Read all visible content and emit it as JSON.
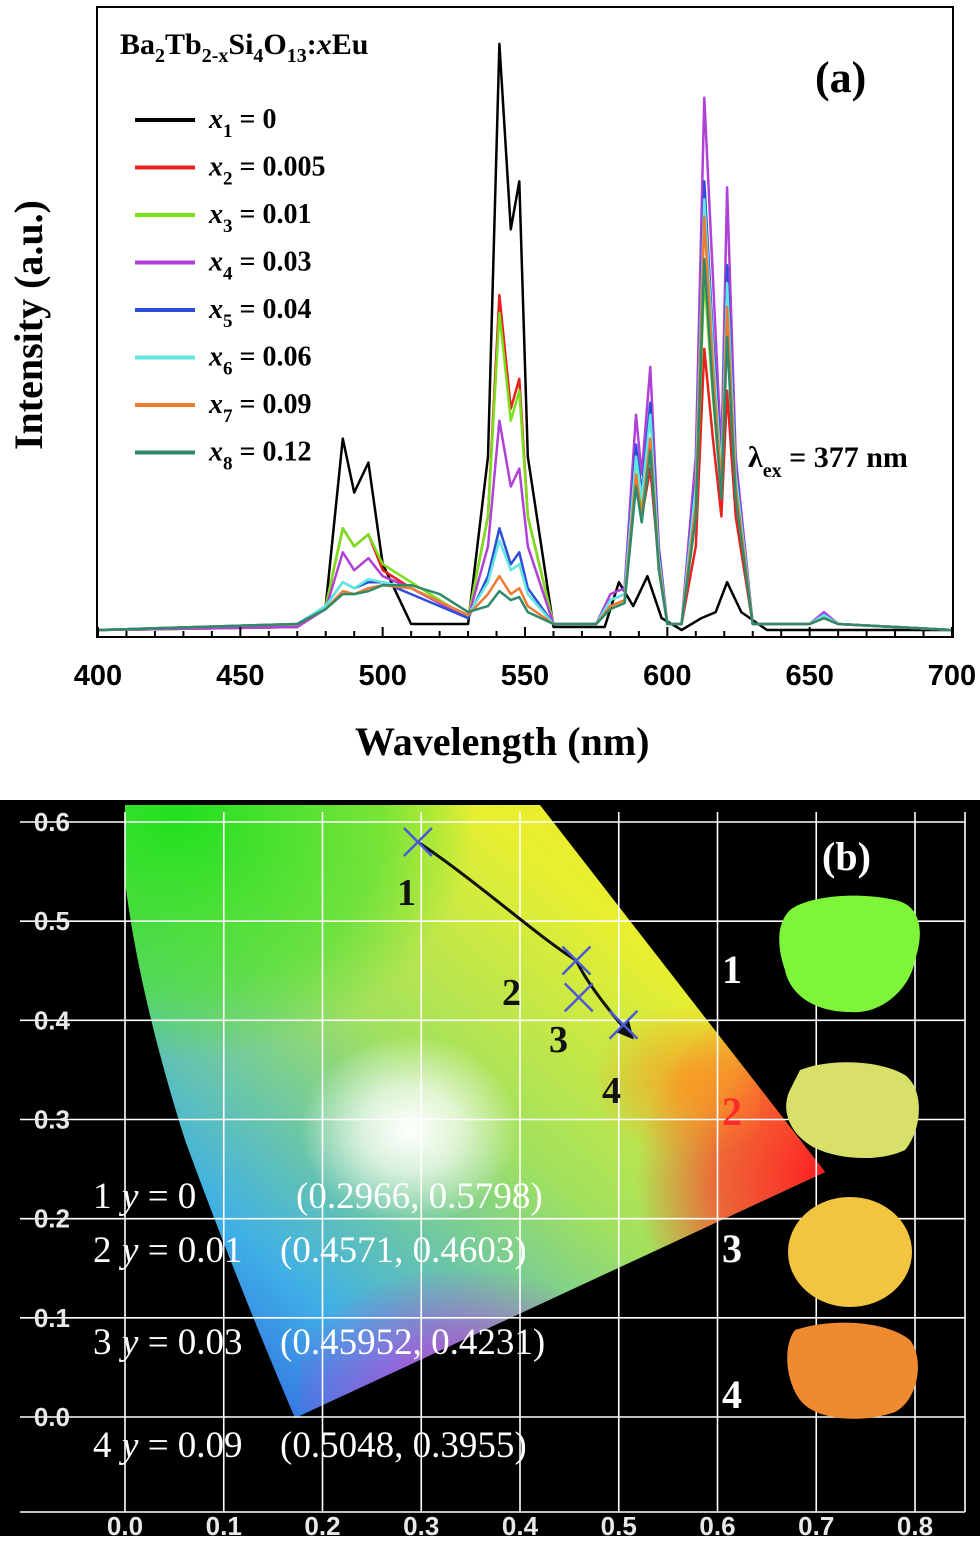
{
  "panel_a": {
    "panel_label": "(a)",
    "formula": {
      "p1": "Ba",
      "s1": "2",
      "p2": "Tb",
      "s2": "2-x",
      "p3": "Si",
      "s3": "4",
      "p4": "O",
      "s4": "13",
      "p5": ":",
      "p6": "x",
      "p7": "Eu"
    },
    "excitation_label": {
      "symbol": "λ",
      "sub": "ex",
      "value": " = 377 nm"
    }
  },
  "panel_b": {
    "panel_label": "(b)",
    "point_labels": [
      "1",
      "2",
      "3",
      "4"
    ],
    "photo_labels": [
      "1",
      "2",
      "3",
      "4"
    ],
    "photo_colors": [
      "#7ef538",
      "#d8e06a",
      "#f2c440",
      "#f08a30"
    ],
    "table_rows": [
      {
        "num": "1",
        "var": "y",
        "eq": " = 0",
        "coord": "(0.2966, 0.5798)"
      },
      {
        "num": "2",
        "var": "y",
        "eq": " = 0.01",
        "coord": "(0.4571, 0.4603)"
      },
      {
        "num": "3",
        "var": "y",
        "eq": " = 0.03",
        "coord": "(0.45952, 0.4231)"
      },
      {
        "num": "4",
        "var": "y",
        "eq": " = 0.09",
        "coord": "(0.5048, 0.3955)"
      }
    ]
  },
  "chart_data": [
    {
      "type": "line",
      "title": "",
      "xlabel": "Wavelength (nm)",
      "ylabel": "Intensity (a.u.)",
      "xlim": [
        400,
        700
      ],
      "ylim": [
        0,
        1.05
      ],
      "xticks": [
        "400",
        "450",
        "500",
        "550",
        "600",
        "650",
        "700"
      ],
      "legend_position": "top-left",
      "series": [
        {
          "name_var": "x",
          "name_sub": "1",
          "name_value": " = 0",
          "color": "#000000",
          "x": [
            400,
            470,
            480,
            486,
            490,
            495,
            500,
            510,
            530,
            537,
            541,
            545,
            548,
            551,
            560,
            578,
            583,
            588,
            593,
            598,
            605,
            612,
            617,
            621,
            626,
            635,
            700
          ],
          "y": [
            0.01,
            0.015,
            0.05,
            0.33,
            0.24,
            0.29,
            0.12,
            0.02,
            0.02,
            0.3,
            0.99,
            0.68,
            0.76,
            0.3,
            0.015,
            0.015,
            0.09,
            0.05,
            0.1,
            0.03,
            0.01,
            0.03,
            0.04,
            0.09,
            0.04,
            0.01,
            0.01
          ]
        },
        {
          "name_var": "x",
          "name_sub": "2",
          "name_value": " = 0.005",
          "color": "#e8201e",
          "x": [
            400,
            470,
            480,
            486,
            490,
            495,
            500,
            510,
            530,
            537,
            541,
            545,
            548,
            551,
            560,
            575,
            580,
            585,
            589,
            591,
            594,
            597,
            600,
            605,
            610,
            613,
            616,
            619,
            621,
            624,
            630,
            650,
            655,
            660,
            700
          ],
          "y": [
            0.01,
            0.015,
            0.05,
            0.18,
            0.15,
            0.17,
            0.11,
            0.08,
            0.03,
            0.2,
            0.57,
            0.38,
            0.43,
            0.2,
            0.02,
            0.02,
            0.05,
            0.06,
            0.27,
            0.2,
            0.28,
            0.12,
            0.02,
            0.02,
            0.15,
            0.48,
            0.33,
            0.2,
            0.41,
            0.2,
            0.02,
            0.02,
            0.03,
            0.02,
            0.01
          ]
        },
        {
          "name_var": "x",
          "name_sub": "3",
          "name_value": " = 0.01",
          "color": "#7be01c",
          "x": [
            400,
            470,
            480,
            486,
            490,
            495,
            500,
            510,
            530,
            537,
            541,
            545,
            548,
            551,
            560,
            575,
            580,
            585,
            589,
            591,
            594,
            597,
            600,
            605,
            610,
            613,
            616,
            619,
            621,
            624,
            630,
            650,
            655,
            660,
            700
          ],
          "y": [
            0.01,
            0.015,
            0.05,
            0.18,
            0.15,
            0.17,
            0.12,
            0.09,
            0.03,
            0.2,
            0.54,
            0.36,
            0.41,
            0.2,
            0.02,
            0.02,
            0.06,
            0.07,
            0.3,
            0.22,
            0.31,
            0.13,
            0.02,
            0.02,
            0.2,
            0.6,
            0.4,
            0.24,
            0.52,
            0.24,
            0.02,
            0.02,
            0.035,
            0.02,
            0.01
          ]
        },
        {
          "name_var": "x",
          "name_sub": "4",
          "name_value": " = 0.03",
          "color": "#b041d8",
          "x": [
            400,
            470,
            480,
            486,
            490,
            495,
            500,
            510,
            530,
            537,
            541,
            545,
            548,
            551,
            560,
            575,
            580,
            585,
            589,
            591,
            594,
            597,
            600,
            605,
            610,
            613,
            616,
            619,
            621,
            624,
            630,
            650,
            655,
            660,
            700
          ],
          "y": [
            0.01,
            0.015,
            0.045,
            0.14,
            0.11,
            0.13,
            0.1,
            0.08,
            0.03,
            0.15,
            0.36,
            0.25,
            0.28,
            0.15,
            0.02,
            0.02,
            0.07,
            0.08,
            0.37,
            0.27,
            0.45,
            0.15,
            0.02,
            0.02,
            0.3,
            0.9,
            0.6,
            0.3,
            0.75,
            0.3,
            0.02,
            0.02,
            0.04,
            0.02,
            0.01
          ]
        },
        {
          "name_var": "x",
          "name_sub": "5",
          "name_value": " = 0.04",
          "color": "#2c4fd8",
          "x": [
            400,
            470,
            480,
            486,
            490,
            495,
            500,
            510,
            530,
            537,
            541,
            545,
            548,
            551,
            560,
            575,
            580,
            585,
            589,
            591,
            594,
            597,
            600,
            605,
            610,
            613,
            616,
            619,
            621,
            624,
            630,
            650,
            655,
            660,
            700
          ],
          "y": [
            0.01,
            0.02,
            0.05,
            0.09,
            0.08,
            0.09,
            0.09,
            0.07,
            0.03,
            0.1,
            0.18,
            0.12,
            0.14,
            0.08,
            0.02,
            0.02,
            0.06,
            0.07,
            0.32,
            0.24,
            0.39,
            0.14,
            0.02,
            0.02,
            0.26,
            0.76,
            0.5,
            0.28,
            0.62,
            0.28,
            0.02,
            0.02,
            0.035,
            0.02,
            0.01
          ]
        },
        {
          "name_var": "x",
          "name_sub": "6",
          "name_value": " = 0.06",
          "color": "#60e8e0",
          "x": [
            400,
            470,
            480,
            486,
            490,
            495,
            500,
            510,
            530,
            537,
            541,
            545,
            548,
            551,
            560,
            575,
            580,
            585,
            589,
            591,
            594,
            597,
            600,
            605,
            610,
            613,
            616,
            619,
            621,
            624,
            630,
            650,
            655,
            660,
            700
          ],
          "y": [
            0.01,
            0.02,
            0.05,
            0.09,
            0.08,
            0.095,
            0.09,
            0.08,
            0.035,
            0.09,
            0.16,
            0.11,
            0.12,
            0.07,
            0.02,
            0.02,
            0.06,
            0.07,
            0.3,
            0.23,
            0.37,
            0.13,
            0.02,
            0.02,
            0.25,
            0.73,
            0.48,
            0.27,
            0.59,
            0.27,
            0.02,
            0.02,
            0.035,
            0.02,
            0.01
          ]
        },
        {
          "name_var": "x",
          "name_sub": "7",
          "name_value": " = 0.09",
          "color": "#f07a30",
          "x": [
            400,
            470,
            480,
            486,
            490,
            495,
            500,
            510,
            530,
            537,
            541,
            545,
            548,
            551,
            560,
            575,
            580,
            585,
            589,
            591,
            594,
            597,
            600,
            605,
            610,
            613,
            616,
            619,
            621,
            624,
            630,
            650,
            655,
            660,
            700
          ],
          "y": [
            0.01,
            0.02,
            0.045,
            0.075,
            0.07,
            0.08,
            0.085,
            0.08,
            0.035,
            0.07,
            0.1,
            0.07,
            0.08,
            0.05,
            0.02,
            0.02,
            0.05,
            0.06,
            0.27,
            0.2,
            0.33,
            0.12,
            0.02,
            0.02,
            0.22,
            0.7,
            0.45,
            0.25,
            0.55,
            0.25,
            0.02,
            0.02,
            0.03,
            0.02,
            0.01
          ]
        },
        {
          "name_var": "x",
          "name_sub": "8",
          "name_value": " = 0.12",
          "color": "#2e8a6a",
          "x": [
            400,
            470,
            480,
            486,
            490,
            495,
            500,
            510,
            520,
            530,
            537,
            541,
            545,
            548,
            551,
            560,
            575,
            580,
            585,
            589,
            591,
            594,
            597,
            600,
            605,
            610,
            613,
            616,
            619,
            621,
            624,
            630,
            650,
            655,
            660,
            700
          ],
          "y": [
            0.01,
            0.02,
            0.045,
            0.07,
            0.07,
            0.075,
            0.085,
            0.085,
            0.07,
            0.04,
            0.05,
            0.075,
            0.06,
            0.065,
            0.04,
            0.02,
            0.02,
            0.045,
            0.055,
            0.25,
            0.19,
            0.31,
            0.11,
            0.02,
            0.02,
            0.2,
            0.63,
            0.41,
            0.23,
            0.5,
            0.23,
            0.02,
            0.02,
            0.03,
            0.02,
            0.01
          ]
        }
      ]
    },
    {
      "type": "scatter",
      "title": "",
      "xlabel": "",
      "ylabel": "",
      "xlim": [
        0.0,
        0.8
      ],
      "ylim": [
        0.0,
        0.6
      ],
      "xticks": [
        "0.0",
        "0.1",
        "0.2",
        "0.3",
        "0.4",
        "0.5",
        "0.6",
        "0.7",
        "0.8"
      ],
      "yticks": [
        "0.0",
        "0.1",
        "0.2",
        "0.3",
        "0.4",
        "0.5",
        "0.6"
      ],
      "grid": true,
      "series": [
        {
          "name": "",
          "x": [
            0.2966,
            0.4571,
            0.4595,
            0.5048
          ],
          "y": [
            0.5798,
            0.4603,
            0.4231,
            0.3955
          ]
        }
      ]
    }
  ]
}
